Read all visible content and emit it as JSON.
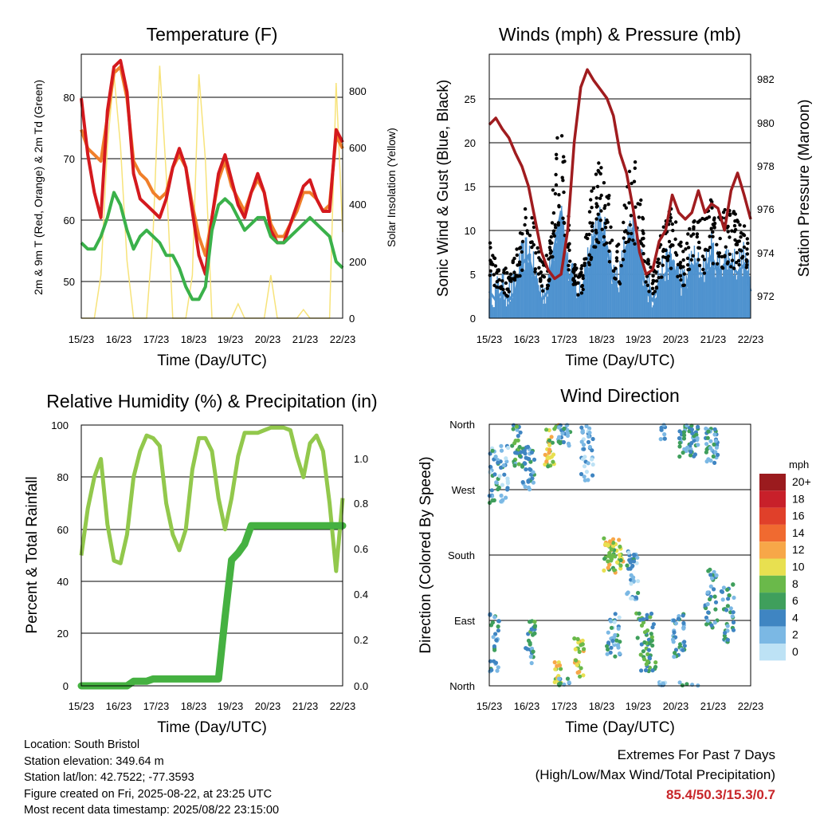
{
  "x_ticks": [
    "15/23",
    "16/23",
    "17/23",
    "18/23",
    "19/23",
    "20/23",
    "21/23",
    "22/23"
  ],
  "panels": {
    "temperature": {
      "title": "Temperature (F)",
      "xlabel": "Time (Day/UTC)",
      "ylabel_left": "2m & 9m T (Red, Orange) & 2m Td (Green)",
      "ylabel_right": "Solar Insolation (Yellow)",
      "left_ticks": [
        "50",
        "60",
        "70",
        "80"
      ],
      "right_ticks": [
        "0",
        "200",
        "400",
        "600",
        "800"
      ]
    },
    "winds": {
      "title": "Winds (mph) & Pressure (mb)",
      "xlabel": "Time (Day/UTC)",
      "ylabel_left": "Sonic Wind & Gust (Blue, Black)",
      "ylabel_right": "Station Pressure (Maroon)",
      "left_ticks": [
        "0",
        "5",
        "10",
        "15",
        "20",
        "25"
      ],
      "right_ticks": [
        "972",
        "974",
        "976",
        "978",
        "980",
        "982"
      ]
    },
    "humidity": {
      "title": "Relative Humidity (%) & Precipitation (in)",
      "xlabel": "Time (Day/UTC)",
      "ylabel_left": "Percent & Total Rainfall",
      "left_ticks": [
        "0",
        "20",
        "40",
        "60",
        "80",
        "100"
      ],
      "right_ticks": [
        "0.0",
        "0.2",
        "0.4",
        "0.6",
        "0.8",
        "1.0"
      ]
    },
    "direction": {
      "title": "Wind Direction",
      "xlabel": "Time (Day/UTC)",
      "ylabel_left": "Direction (Colored By Speed)",
      "left_ticks": [
        "North",
        "East",
        "South",
        "West",
        "North"
      ],
      "legend_title": "mph",
      "legend_labels": [
        "20+",
        "18",
        "16",
        "14",
        "12",
        "10",
        "8",
        "6",
        "4",
        "2",
        "0"
      ],
      "legend_colors": [
        "#9b1b1e",
        "#c8202a",
        "#e0402a",
        "#f06a30",
        "#f7a748",
        "#e8e050",
        "#6ab94a",
        "#3f9f5c",
        "#3f85c2",
        "#7bb8e4",
        "#bde2f5"
      ]
    }
  },
  "info": {
    "location": "Location: South Bristol",
    "elevation": "Station elevation: 349.64 m",
    "latlon": "Station lat/lon: 42.7522; -77.3593",
    "created": "Figure created on Fri, 2025-08-22, at 23:25 UTC",
    "recent": "Most recent data timestamp: 2025/08/22 23:15:00"
  },
  "extremes": {
    "title": "Extremes For Past 7 Days",
    "subtitle": "(High/Low/Max Wind/Total Precipitation)",
    "values": "85.4/50.3/15.3/0.7"
  },
  "colors": {
    "temp_2m": "#d4191e",
    "temp_9m": "#f07f2a",
    "dewpoint": "#3ab14a",
    "solar": "#f7e37a",
    "wind": "#4e92cf",
    "gust": "#000000",
    "pressure": "#a01c1f",
    "rh": "#92c84c",
    "precip": "#45b141"
  },
  "chart_data": [
    {
      "type": "line",
      "title": "Temperature (F)",
      "xlabel": "Time (Day/UTC)",
      "ylabel": "2m & 9m T (Red, Orange) & 2m Td (Green)",
      "ylabel_right": "Solar Insolation (Yellow)",
      "ylim": [
        44,
        86
      ],
      "ylim_right": [
        0,
        920
      ],
      "x": [
        15.0,
        15.2,
        15.4,
        15.6,
        15.8,
        16.0,
        16.2,
        16.4,
        16.6,
        16.8,
        17.0,
        17.2,
        17.4,
        17.6,
        17.8,
        18.0,
        18.2,
        18.4,
        18.6,
        18.8,
        19.0,
        19.2,
        19.4,
        19.6,
        19.8,
        20.0,
        20.2,
        20.4,
        20.6,
        20.8,
        21.0,
        21.2,
        21.4,
        21.6,
        21.8,
        22.0,
        22.2,
        22.4,
        22.6,
        22.8,
        23.0
      ],
      "series": [
        {
          "name": "2m T",
          "axis": "left",
          "values": [
            79,
            70,
            64,
            60,
            77,
            84,
            85,
            80,
            67,
            63,
            62,
            61,
            60,
            63,
            68,
            71,
            68,
            61,
            54,
            51,
            60,
            67,
            70,
            66,
            62,
            60,
            64,
            67,
            64,
            58,
            56,
            56,
            59,
            62,
            65,
            66,
            63,
            61,
            61,
            74,
            72
          ]
        },
        {
          "name": "9m T",
          "axis": "left",
          "values": [
            74,
            71,
            70,
            69,
            76,
            83,
            84,
            79,
            69,
            67,
            66,
            64,
            63,
            64,
            68,
            70,
            68,
            62,
            57,
            54,
            60,
            66,
            69,
            65,
            63,
            61,
            64,
            66,
            64,
            59,
            57,
            57,
            59,
            61,
            64,
            64,
            63,
            61,
            62,
            73,
            71
          ]
        },
        {
          "name": "2m Td",
          "axis": "left",
          "values": [
            56,
            55,
            55,
            57,
            60,
            64,
            62,
            58,
            55,
            57,
            58,
            57,
            56,
            54,
            54,
            52,
            49,
            47,
            47,
            49,
            58,
            62,
            63,
            62,
            60,
            58,
            59,
            60,
            60,
            57,
            56,
            56,
            57,
            58,
            59,
            60,
            59,
            58,
            57,
            53,
            52
          ]
        },
        {
          "name": "Solar",
          "axis": "right",
          "values": [
            0,
            0,
            0,
            150,
            600,
            850,
            600,
            200,
            0,
            0,
            0,
            300,
            880,
            500,
            0,
            0,
            0,
            150,
            850,
            550,
            0,
            0,
            0,
            0,
            50,
            0,
            0,
            0,
            0,
            150,
            0,
            0,
            0,
            0,
            30,
            0,
            0,
            0,
            0,
            820,
            300
          ]
        }
      ]
    },
    {
      "type": "line",
      "title": "Winds (mph) & Pressure (mb)",
      "xlabel": "Time (Day/UTC)",
      "ylabel": "Sonic Wind & Gust (Blue, Black)",
      "ylabel_right": "Station Pressure (Maroon)",
      "ylim": [
        0,
        29.5
      ],
      "ylim_right": [
        971.0,
        983.0
      ],
      "x": [
        15.0,
        15.2,
        15.4,
        15.6,
        15.8,
        16.0,
        16.2,
        16.4,
        16.6,
        16.8,
        17.0,
        17.2,
        17.4,
        17.6,
        17.8,
        18.0,
        18.2,
        18.4,
        18.6,
        18.8,
        19.0,
        19.2,
        19.4,
        19.6,
        19.8,
        20.0,
        20.2,
        20.4,
        20.6,
        20.8,
        21.0,
        21.2,
        21.4,
        21.6,
        21.8,
        22.0,
        22.2,
        22.4,
        22.6,
        22.8,
        23.0
      ],
      "series": [
        {
          "name": "Sonic Wind",
          "axis": "left",
          "values": [
            3,
            2,
            3,
            2,
            3,
            6,
            7,
            4,
            2,
            3,
            8,
            12,
            5,
            3,
            2,
            6,
            9,
            10,
            8,
            4,
            4,
            8,
            9,
            7,
            3,
            2,
            4,
            5,
            6,
            4,
            3,
            6,
            5,
            5,
            7,
            5,
            6,
            6,
            5,
            6,
            3
          ]
        },
        {
          "name": "Gust",
          "axis": "left",
          "values": [
            8,
            5,
            5,
            4,
            6,
            9,
            11,
            8,
            5,
            6,
            14,
            20,
            10,
            5,
            4,
            9,
            14,
            15,
            13,
            8,
            7,
            14,
            15,
            13,
            6,
            4,
            7,
            9,
            10,
            8,
            6,
            10,
            9,
            9,
            11,
            9,
            10,
            10,
            9,
            10,
            5
          ]
        },
        {
          "name": "Pressure",
          "axis": "right",
          "values": [
            979.8,
            980.1,
            979.6,
            979.2,
            978.5,
            977.9,
            977.0,
            975.5,
            974.0,
            973.2,
            972.8,
            973.0,
            975.0,
            979.0,
            981.5,
            982.3,
            981.8,
            981.4,
            981.0,
            980.2,
            978.5,
            977.6,
            976.0,
            974.0,
            973.0,
            973.2,
            974.5,
            975.0,
            976.6,
            975.8,
            975.5,
            975.8,
            976.8,
            975.8,
            976.2,
            976.0,
            975.0,
            976.8,
            977.6,
            976.6,
            975.5
          ]
        }
      ]
    },
    {
      "type": "line",
      "title": "Relative Humidity (%) & Precipitation (in)",
      "xlabel": "Time (Day/UTC)",
      "ylabel": "Percent & Total Rainfall",
      "ylim": [
        0,
        100
      ],
      "ylim_right": [
        0,
        1.14
      ],
      "x": [
        15.0,
        15.2,
        15.4,
        15.6,
        15.8,
        16.0,
        16.2,
        16.4,
        16.6,
        16.8,
        17.0,
        17.2,
        17.4,
        17.6,
        17.8,
        18.0,
        18.2,
        18.4,
        18.6,
        18.8,
        19.0,
        19.2,
        19.4,
        19.6,
        19.8,
        20.0,
        20.2,
        20.4,
        20.6,
        20.8,
        21.0,
        21.2,
        21.4,
        21.6,
        21.8,
        22.0,
        22.2,
        22.4,
        22.6,
        22.8,
        23.0
      ],
      "series": [
        {
          "name": "Relative Humidity",
          "axis": "left",
          "values": [
            50,
            68,
            80,
            87,
            62,
            48,
            47,
            58,
            80,
            90,
            96,
            95,
            92,
            70,
            58,
            52,
            60,
            83,
            95,
            95,
            90,
            72,
            60,
            72,
            88,
            97,
            97,
            97,
            98,
            99,
            99,
            99,
            98,
            88,
            80,
            93,
            96,
            90,
            70,
            44,
            72
          ]
        },
        {
          "name": "Total Precipitation",
          "axis": "right",
          "values": [
            0,
            0,
            0,
            0,
            0,
            0,
            0,
            0,
            0.02,
            0.02,
            0.02,
            0.03,
            0.03,
            0.03,
            0.03,
            0.03,
            0.03,
            0.03,
            0.03,
            0.03,
            0.03,
            0.03,
            0.3,
            0.55,
            0.58,
            0.62,
            0.7,
            0.7,
            0.7,
            0.7,
            0.7,
            0.7,
            0.7,
            0.7,
            0.7,
            0.7,
            0.7,
            0.7,
            0.7,
            0.7,
            0.7
          ]
        }
      ]
    },
    {
      "type": "scatter",
      "title": "Wind Direction",
      "xlabel": "Time (Day/UTC)",
      "ylabel": "Direction (Colored By Speed)",
      "y_categories": [
        "North",
        "East",
        "South",
        "West",
        "North"
      ],
      "clusters": [
        {
          "x_start": 15.0,
          "x_end": 15.6,
          "dir_center": 290,
          "dir_spread": 40,
          "speed": 3
        },
        {
          "x_start": 15.0,
          "x_end": 15.3,
          "dir_center": 60,
          "dir_spread": 40,
          "speed": 4
        },
        {
          "x_start": 15.7,
          "x_end": 16.0,
          "dir_center": 330,
          "dir_spread": 30,
          "speed": 5
        },
        {
          "x_start": 16.0,
          "x_end": 16.4,
          "dir_center": 300,
          "dir_spread": 30,
          "speed": 4
        },
        {
          "x_start": 16.1,
          "x_end": 16.4,
          "dir_center": 60,
          "dir_spread": 30,
          "speed": 5
        },
        {
          "x_start": 16.7,
          "x_end": 17.0,
          "dir_center": 330,
          "dir_spread": 30,
          "speed": 9
        },
        {
          "x_start": 17.0,
          "x_end": 17.2,
          "dir_center": 15,
          "dir_spread": 20,
          "speed": 10
        },
        {
          "x_start": 17.1,
          "x_end": 17.5,
          "dir_center": 350,
          "dir_spread": 20,
          "speed": 4
        },
        {
          "x_start": 17.6,
          "x_end": 17.9,
          "dir_center": 40,
          "dir_spread": 30,
          "speed": 10
        },
        {
          "x_start": 17.8,
          "x_end": 18.2,
          "dir_center": 320,
          "dir_spread": 40,
          "speed": 2
        },
        {
          "x_start": 18.5,
          "x_end": 19.1,
          "dir_center": 180,
          "dir_spread": 25,
          "speed": 9
        },
        {
          "x_start": 18.6,
          "x_end": 19.0,
          "dir_center": 70,
          "dir_spread": 30,
          "speed": 3
        },
        {
          "x_start": 19.2,
          "x_end": 19.6,
          "dir_center": 150,
          "dir_spread": 35,
          "speed": 3
        },
        {
          "x_start": 19.5,
          "x_end": 20.1,
          "dir_center": 60,
          "dir_spread": 40,
          "speed": 6
        },
        {
          "x_start": 20.2,
          "x_end": 20.4,
          "dir_center": 350,
          "dir_spread": 15,
          "speed": 2
        },
        {
          "x_start": 20.6,
          "x_end": 21.0,
          "dir_center": 70,
          "dir_spread": 30,
          "speed": 4
        },
        {
          "x_start": 20.8,
          "x_end": 21.4,
          "dir_center": 340,
          "dir_spread": 25,
          "speed": 4
        },
        {
          "x_start": 21.6,
          "x_end": 22.0,
          "dir_center": 330,
          "dir_spread": 25,
          "speed": 4
        },
        {
          "x_start": 21.6,
          "x_end": 22.0,
          "dir_center": 120,
          "dir_spread": 40,
          "speed": 4
        },
        {
          "x_start": 22.1,
          "x_end": 22.5,
          "dir_center": 100,
          "dir_spread": 40,
          "speed": 4
        }
      ]
    }
  ]
}
